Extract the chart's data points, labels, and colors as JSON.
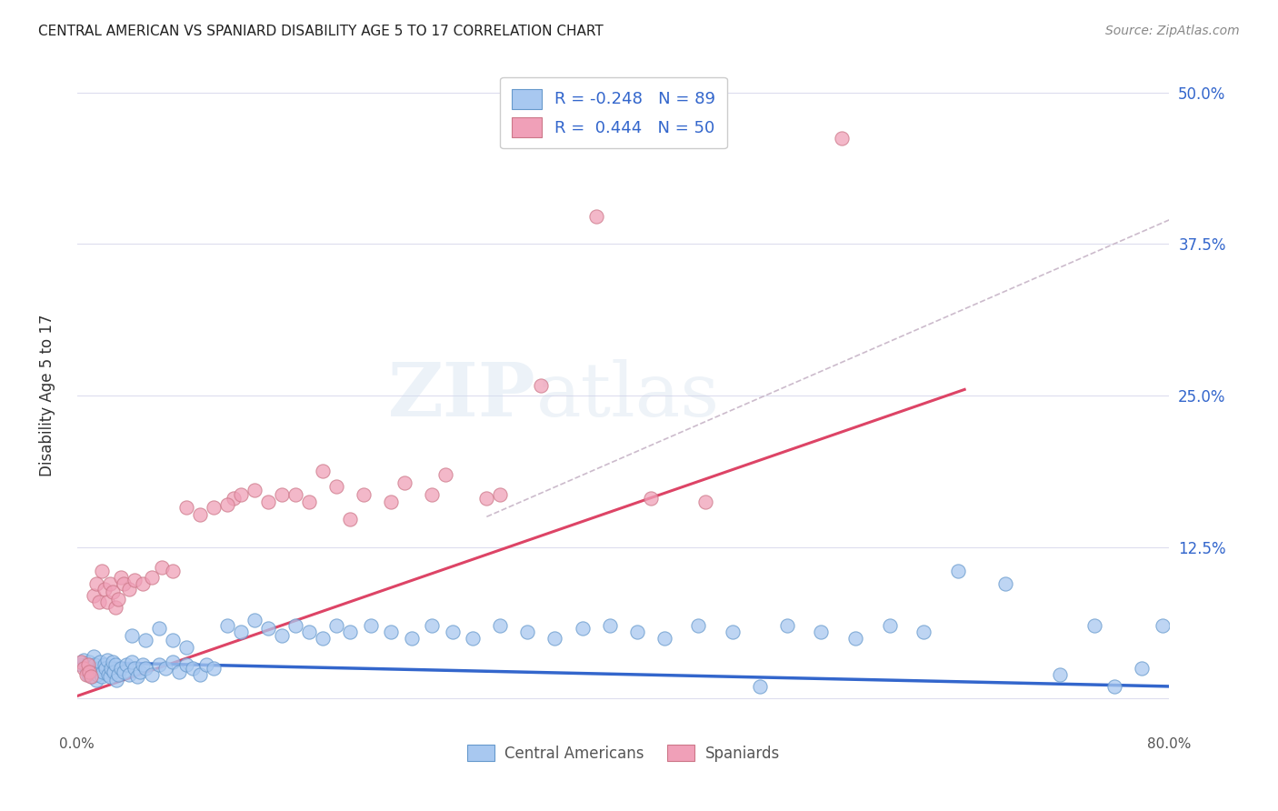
{
  "title": "CENTRAL AMERICAN VS SPANIARD DISABILITY AGE 5 TO 17 CORRELATION CHART",
  "source": "Source: ZipAtlas.com",
  "ylabel": "Disability Age 5 to 17",
  "xlim": [
    0.0,
    0.8
  ],
  "ylim": [
    -0.025,
    0.525
  ],
  "xticks": [
    0.0,
    0.2,
    0.4,
    0.6,
    0.8
  ],
  "yticks": [
    0.0,
    0.125,
    0.25,
    0.375,
    0.5
  ],
  "yticklabels_right": [
    "",
    "12.5%",
    "25.0%",
    "37.5%",
    "50.0%"
  ],
  "watermark_zip": "ZIP",
  "watermark_atlas": "atlas",
  "blue_color": "#A8C8F0",
  "pink_color": "#F0A0B8",
  "blue_edge_color": "#6699CC",
  "pink_edge_color": "#CC7788",
  "blue_line_color": "#3366CC",
  "pink_line_color": "#DD4466",
  "dashed_line_color": "#CCBBCC",
  "grid_color": "#DDDDEE",
  "title_color": "#222222",
  "source_color": "#888888",
  "axis_label_color": "#333333",
  "tick_color_right": "#3366CC",
  "background_color": "#FFFFFF",
  "blue_points_x": [
    0.003,
    0.005,
    0.007,
    0.008,
    0.009,
    0.01,
    0.011,
    0.012,
    0.013,
    0.014,
    0.015,
    0.016,
    0.017,
    0.018,
    0.019,
    0.02,
    0.021,
    0.022,
    0.023,
    0.024,
    0.025,
    0.026,
    0.027,
    0.028,
    0.029,
    0.03,
    0.032,
    0.034,
    0.036,
    0.038,
    0.04,
    0.042,
    0.044,
    0.046,
    0.048,
    0.05,
    0.055,
    0.06,
    0.065,
    0.07,
    0.075,
    0.08,
    0.085,
    0.09,
    0.095,
    0.1,
    0.11,
    0.12,
    0.13,
    0.14,
    0.15,
    0.16,
    0.17,
    0.18,
    0.19,
    0.2,
    0.215,
    0.23,
    0.245,
    0.26,
    0.275,
    0.29,
    0.31,
    0.33,
    0.35,
    0.37,
    0.39,
    0.41,
    0.43,
    0.455,
    0.48,
    0.5,
    0.52,
    0.545,
    0.57,
    0.595,
    0.62,
    0.645,
    0.68,
    0.72,
    0.745,
    0.76,
    0.78,
    0.795,
    0.04,
    0.05,
    0.06,
    0.07,
    0.08
  ],
  "blue_points_y": [
    0.028,
    0.032,
    0.025,
    0.02,
    0.03,
    0.022,
    0.018,
    0.035,
    0.028,
    0.015,
    0.02,
    0.025,
    0.03,
    0.018,
    0.022,
    0.028,
    0.025,
    0.032,
    0.02,
    0.018,
    0.025,
    0.03,
    0.022,
    0.028,
    0.015,
    0.02,
    0.025,
    0.022,
    0.028,
    0.02,
    0.03,
    0.025,
    0.018,
    0.022,
    0.028,
    0.025,
    0.02,
    0.028,
    0.025,
    0.03,
    0.022,
    0.028,
    0.025,
    0.02,
    0.028,
    0.025,
    0.06,
    0.055,
    0.065,
    0.058,
    0.052,
    0.06,
    0.055,
    0.05,
    0.06,
    0.055,
    0.06,
    0.055,
    0.05,
    0.06,
    0.055,
    0.05,
    0.06,
    0.055,
    0.05,
    0.058,
    0.06,
    0.055,
    0.05,
    0.06,
    0.055,
    0.01,
    0.06,
    0.055,
    0.05,
    0.06,
    0.055,
    0.105,
    0.095,
    0.02,
    0.06,
    0.01,
    0.025,
    0.06,
    0.052,
    0.048,
    0.058,
    0.048,
    0.042
  ],
  "pink_points_x": [
    0.003,
    0.005,
    0.007,
    0.008,
    0.009,
    0.01,
    0.012,
    0.014,
    0.016,
    0.018,
    0.02,
    0.022,
    0.024,
    0.026,
    0.028,
    0.03,
    0.032,
    0.034,
    0.038,
    0.042,
    0.048,
    0.055,
    0.062,
    0.07,
    0.08,
    0.09,
    0.1,
    0.115,
    0.13,
    0.15,
    0.17,
    0.19,
    0.21,
    0.24,
    0.27,
    0.31,
    0.34,
    0.38,
    0.42,
    0.46,
    0.11,
    0.12,
    0.14,
    0.16,
    0.18,
    0.2,
    0.23,
    0.26,
    0.3,
    0.56
  ],
  "pink_points_y": [
    0.03,
    0.025,
    0.02,
    0.028,
    0.022,
    0.018,
    0.085,
    0.095,
    0.08,
    0.105,
    0.09,
    0.08,
    0.095,
    0.088,
    0.075,
    0.082,
    0.1,
    0.095,
    0.09,
    0.098,
    0.095,
    0.1,
    0.108,
    0.105,
    0.158,
    0.152,
    0.158,
    0.165,
    0.172,
    0.168,
    0.162,
    0.175,
    0.168,
    0.178,
    0.185,
    0.168,
    0.258,
    0.398,
    0.165,
    0.162,
    0.16,
    0.168,
    0.162,
    0.168,
    0.188,
    0.148,
    0.162,
    0.168,
    0.165,
    0.462
  ],
  "blue_trend_x": [
    0.0,
    0.8
  ],
  "blue_trend_y": [
    0.03,
    0.01
  ],
  "pink_trend_x": [
    0.0,
    0.65
  ],
  "pink_trend_y": [
    0.002,
    0.255
  ],
  "dash_trend_x": [
    0.3,
    0.8
  ],
  "dash_trend_y": [
    0.15,
    0.395
  ]
}
